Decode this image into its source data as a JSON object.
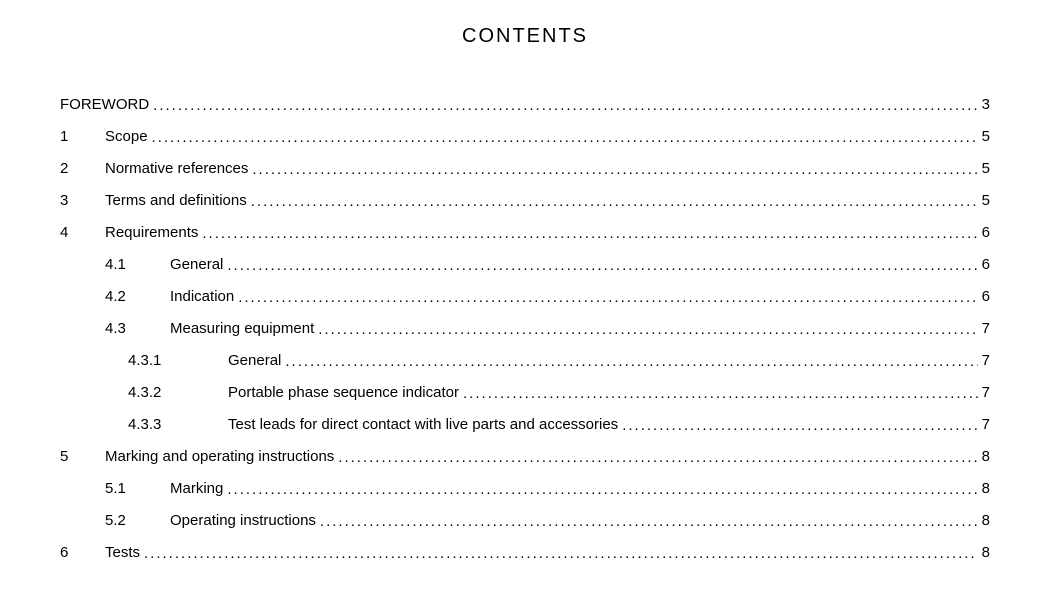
{
  "title": "CONTENTS",
  "entries": [
    {
      "level": 0,
      "number": "",
      "label": "FOREWORD",
      "page": "3"
    },
    {
      "level": 1,
      "number": "1",
      "label": "Scope",
      "page": "5"
    },
    {
      "level": 1,
      "number": "2",
      "label": "Normative references",
      "page": "5"
    },
    {
      "level": 1,
      "number": "3",
      "label": "Terms and definitions",
      "page": "5"
    },
    {
      "level": 1,
      "number": "4",
      "label": "Requirements",
      "page": "6"
    },
    {
      "level": 2,
      "number": "4.1",
      "label": "General",
      "page": "6"
    },
    {
      "level": 2,
      "number": "4.2",
      "label": "Indication",
      "page": "6"
    },
    {
      "level": 2,
      "number": "4.3",
      "label": "Measuring equipment",
      "page": "7"
    },
    {
      "level": 3,
      "number": "4.3.1",
      "label": "General",
      "page": "7"
    },
    {
      "level": 3,
      "number": "4.3.2",
      "label": "Portable phase sequence indicator",
      "page": "7"
    },
    {
      "level": 3,
      "number": "4.3.3",
      "label": "Test leads for direct contact with live parts and accessories",
      "page": "7"
    },
    {
      "level": 1,
      "number": "5",
      "label": "Marking and operating instructions",
      "page": "8"
    },
    {
      "level": 2,
      "number": "5.1",
      "label": "Marking",
      "page": "8"
    },
    {
      "level": 2,
      "number": "5.2",
      "label": "Operating instructions",
      "page": "8"
    },
    {
      "level": 1,
      "number": "6",
      "label": "Tests",
      "page": "8"
    }
  ],
  "style": {
    "leader_char": ".",
    "text_color": "#000000",
    "background_color": "#ffffff",
    "title_fontsize": 20,
    "body_fontsize": 15,
    "line_spacing": 8
  }
}
